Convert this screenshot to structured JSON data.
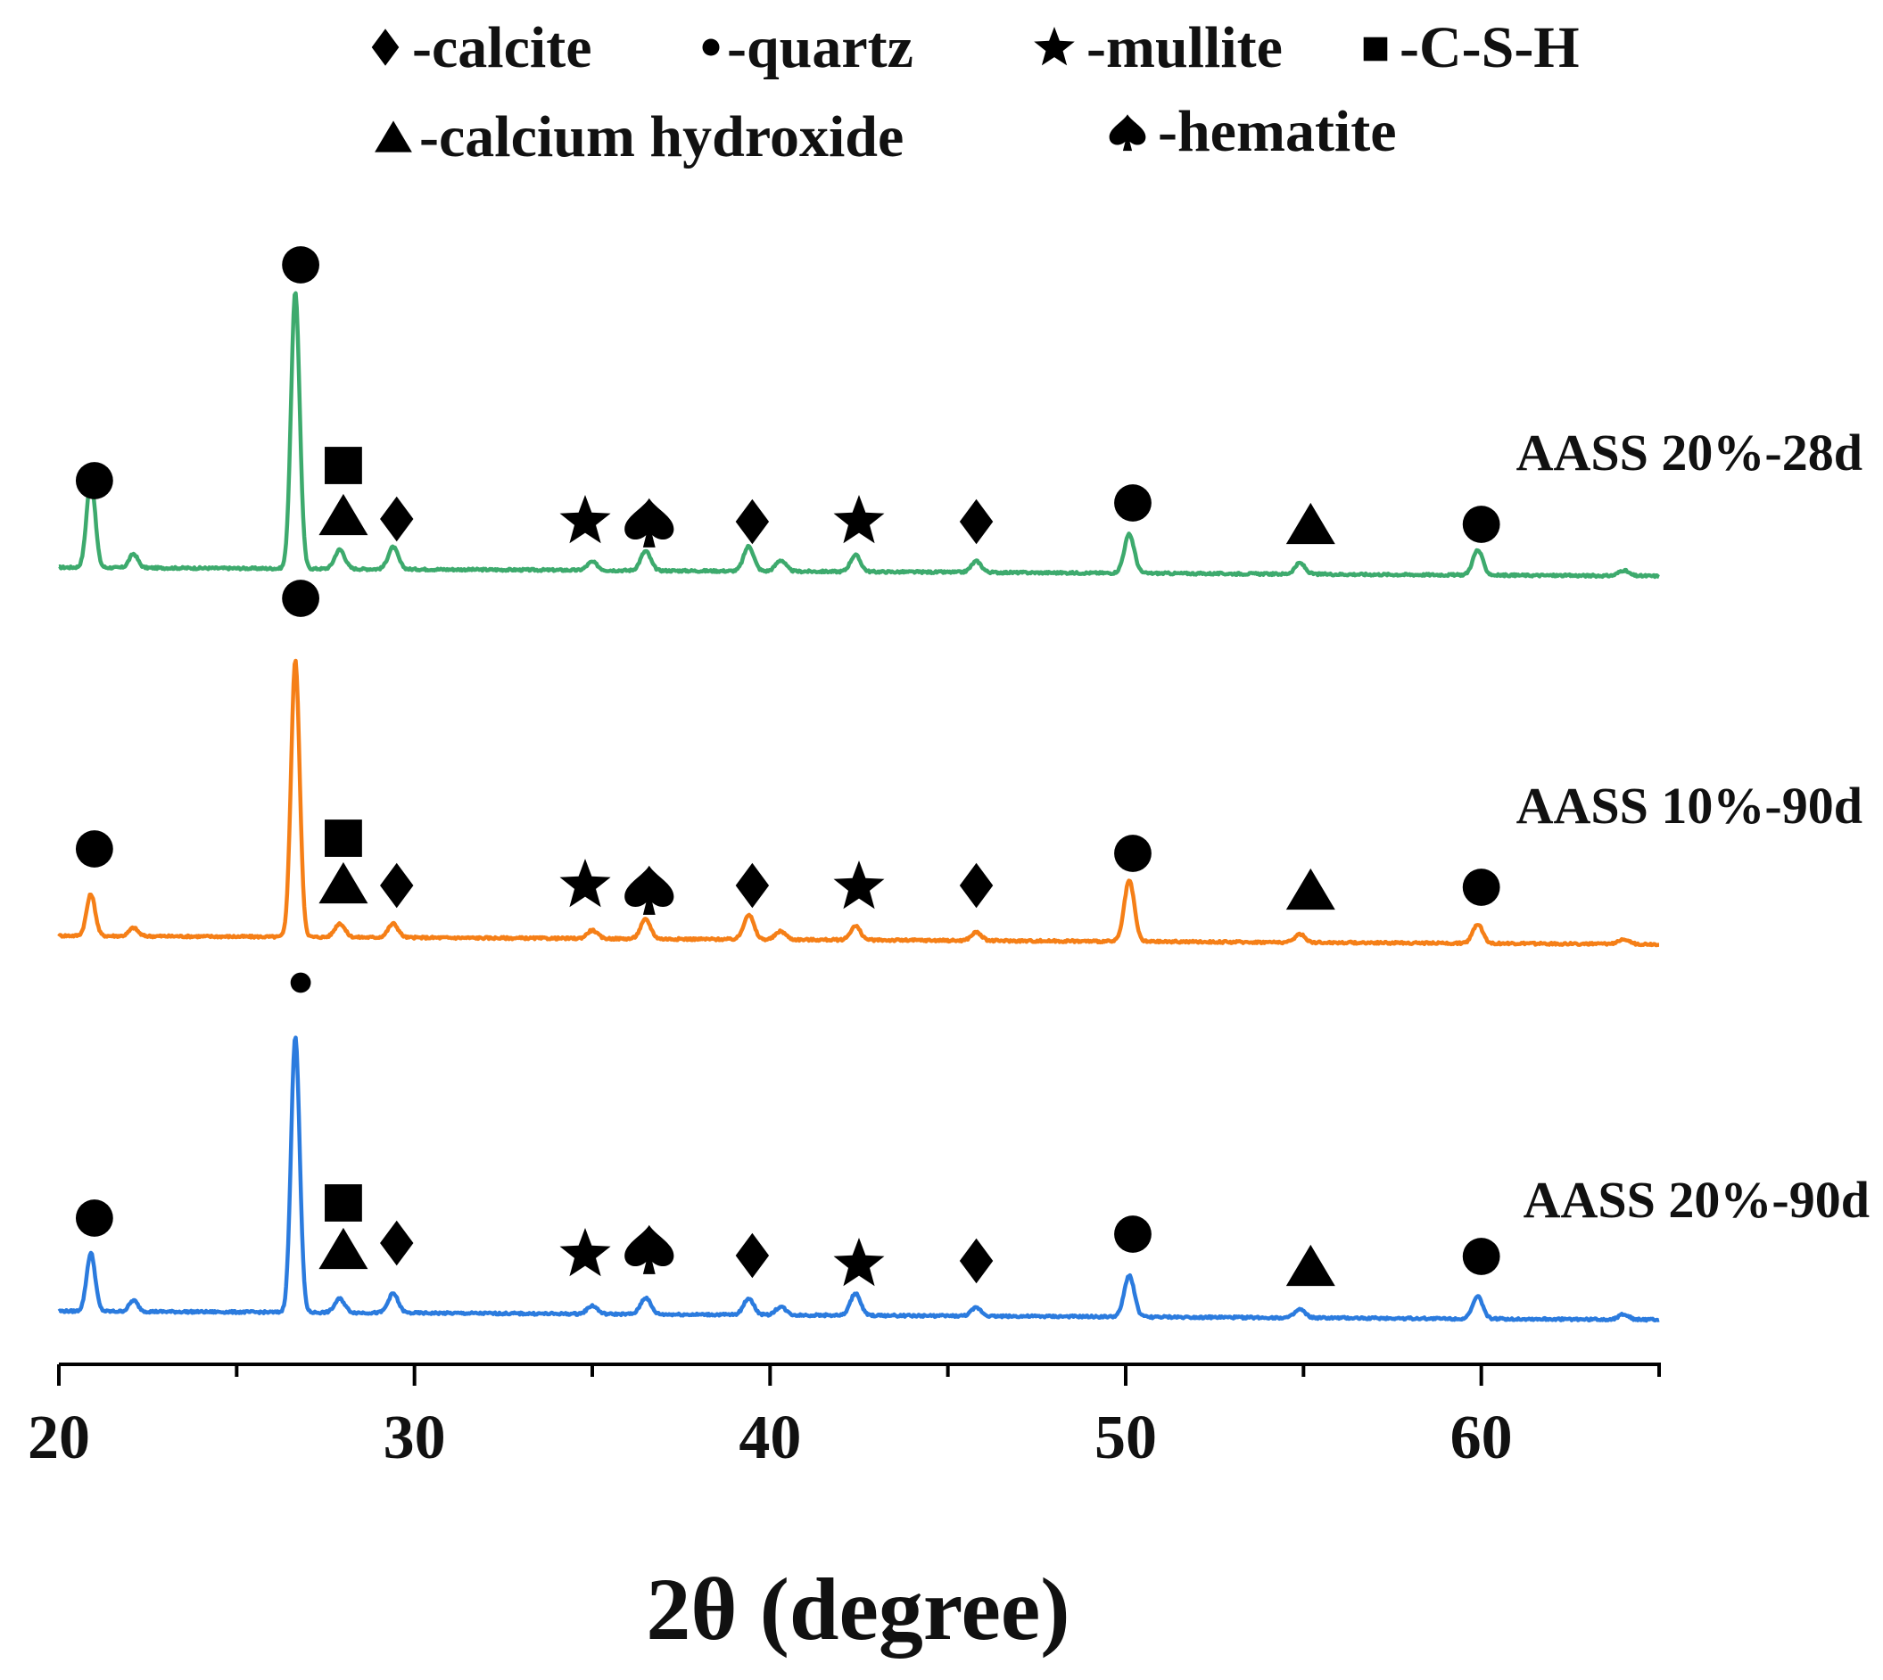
{
  "chart_data": {
    "type": "line",
    "title": "",
    "xlabel": "2θ (degree)",
    "ylabel": "",
    "xlim": [
      20,
      65
    ],
    "xticks_major": [
      20,
      30,
      40,
      50,
      60
    ],
    "xtick_labels": [
      "20",
      "30",
      "40",
      "50",
      "60"
    ],
    "xticks_minor": [
      25,
      35,
      45,
      55,
      65
    ],
    "grid": false,
    "legend": {
      "placement": "top",
      "entries": [
        {
          "symbol": "diamond",
          "label": "-calcite"
        },
        {
          "symbol": "circle",
          "label": "-quartz"
        },
        {
          "symbol": "star",
          "label": "-mullite"
        },
        {
          "symbol": "square",
          "label": "-C-S-H"
        },
        {
          "symbol": "triangle",
          "label": "-calcium hydroxide"
        },
        {
          "symbol": "spade",
          "label": "-hematite"
        }
      ]
    },
    "series": [
      {
        "name": "AASS 20%-28d",
        "color": "#3daa6d",
        "peaks": [
          [
            20.9,
            0.32
          ],
          [
            22.1,
            0.05
          ],
          [
            26.65,
            1.0
          ],
          [
            27.9,
            0.07
          ],
          [
            29.4,
            0.08
          ],
          [
            35.0,
            0.03
          ],
          [
            36.5,
            0.07
          ],
          [
            39.4,
            0.09
          ],
          [
            40.3,
            0.04
          ],
          [
            42.4,
            0.06
          ],
          [
            45.8,
            0.04
          ],
          [
            50.1,
            0.14
          ],
          [
            54.9,
            0.04
          ],
          [
            59.9,
            0.09
          ],
          [
            64.0,
            0.02
          ]
        ],
        "annotations": [
          {
            "symbol": "circle",
            "x": 21.0
          },
          {
            "symbol": "circle",
            "x": 26.8
          },
          {
            "symbol": "square",
            "x": 28.0
          },
          {
            "symbol": "triangle",
            "x": 28.0
          },
          {
            "symbol": "diamond",
            "x": 29.5
          },
          {
            "symbol": "star",
            "x": 34.8
          },
          {
            "symbol": "spade",
            "x": 36.6
          },
          {
            "symbol": "diamond",
            "x": 39.5
          },
          {
            "symbol": "star",
            "x": 42.5
          },
          {
            "symbol": "diamond",
            "x": 45.8
          },
          {
            "symbol": "circle",
            "x": 50.2
          },
          {
            "symbol": "triangle",
            "x": 55.2
          },
          {
            "symbol": "circle",
            "x": 60.0
          }
        ]
      },
      {
        "name": "AASS 10%-90d",
        "color": "#f57f17",
        "peaks": [
          [
            20.9,
            0.15
          ],
          [
            22.1,
            0.03
          ],
          [
            26.65,
            1.0
          ],
          [
            27.9,
            0.05
          ],
          [
            29.4,
            0.05
          ],
          [
            35.0,
            0.03
          ],
          [
            36.5,
            0.07
          ],
          [
            39.4,
            0.09
          ],
          [
            40.3,
            0.03
          ],
          [
            42.4,
            0.05
          ],
          [
            45.8,
            0.03
          ],
          [
            50.1,
            0.22
          ],
          [
            54.9,
            0.03
          ],
          [
            59.9,
            0.07
          ],
          [
            64.0,
            0.02
          ]
        ],
        "annotations": [
          {
            "symbol": "circle",
            "x": 21.0
          },
          {
            "symbol": "circle",
            "x": 26.8
          },
          {
            "symbol": "square",
            "x": 28.0
          },
          {
            "symbol": "triangle",
            "x": 28.0
          },
          {
            "symbol": "diamond",
            "x": 29.5
          },
          {
            "symbol": "star",
            "x": 34.8
          },
          {
            "symbol": "spade",
            "x": 36.6
          },
          {
            "symbol": "diamond",
            "x": 39.5
          },
          {
            "symbol": "star",
            "x": 42.5
          },
          {
            "symbol": "diamond",
            "x": 45.8
          },
          {
            "symbol": "circle",
            "x": 50.2
          },
          {
            "symbol": "triangle",
            "x": 55.2
          },
          {
            "symbol": "circle",
            "x": 60.0
          }
        ]
      },
      {
        "name": "AASS 20%-90d",
        "color": "#2b7bde",
        "peaks": [
          [
            20.9,
            0.21
          ],
          [
            22.1,
            0.04
          ],
          [
            26.65,
            1.0
          ],
          [
            27.9,
            0.05
          ],
          [
            29.4,
            0.07
          ],
          [
            35.0,
            0.03
          ],
          [
            36.5,
            0.06
          ],
          [
            39.4,
            0.06
          ],
          [
            40.3,
            0.03
          ],
          [
            42.4,
            0.08
          ],
          [
            45.8,
            0.03
          ],
          [
            50.1,
            0.15
          ],
          [
            54.9,
            0.03
          ],
          [
            59.9,
            0.08
          ],
          [
            64.0,
            0.02
          ]
        ],
        "annotations": [
          {
            "symbol": "circle",
            "x": 21.0
          },
          {
            "symbol": "circle",
            "x": 26.8
          },
          {
            "symbol": "square",
            "x": 28.0
          },
          {
            "symbol": "triangle",
            "x": 28.0
          },
          {
            "symbol": "diamond",
            "x": 29.5
          },
          {
            "symbol": "star",
            "x": 34.8
          },
          {
            "symbol": "spade",
            "x": 36.6
          },
          {
            "symbol": "diamond",
            "x": 39.5
          },
          {
            "symbol": "star",
            "x": 42.5
          },
          {
            "symbol": "diamond",
            "x": 45.8
          },
          {
            "symbol": "circle",
            "x": 50.2
          },
          {
            "symbol": "triangle",
            "x": 55.2
          },
          {
            "symbol": "circle",
            "x": 60.0
          }
        ]
      }
    ]
  }
}
